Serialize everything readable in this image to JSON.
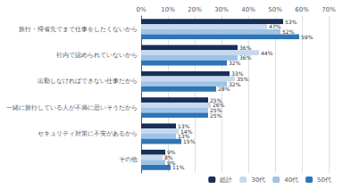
{
  "chart_data": {
    "type": "bar",
    "orientation": "horizontal",
    "categories": [
      "旅行・帰省先でまで仕事をしたくないから",
      "社内で認められていないから",
      "出勤しなければできない仕事だから",
      "一緒に旅行している人が不満に思いそうだから",
      "セキュリティ対策に不安があるから",
      "その他"
    ],
    "series": [
      {
        "name": "総計",
        "color": "#1a2e5a",
        "values": [
          53,
          36,
          33,
          25,
          13,
          9
        ],
        "value_labels": [
          "53%",
          "36%",
          "33%",
          "25%",
          "13%",
          "9%"
        ]
      },
      {
        "name": "30代",
        "color": "#c5d9ef",
        "values": [
          47,
          44,
          35,
          26,
          14,
          8
        ],
        "value_labels": [
          "47%",
          "44%",
          "35%",
          "26%",
          "14%",
          "8%"
        ]
      },
      {
        "name": "40代",
        "color": "#9dc3e6",
        "values": [
          52,
          36,
          32,
          25,
          13,
          9
        ],
        "value_labels": [
          "52%",
          "36%",
          "32%",
          "25%",
          "13%",
          "9%"
        ]
      },
      {
        "name": "50代",
        "color": "#2e75b6",
        "values": [
          59,
          32,
          28,
          25,
          15,
          11
        ],
        "value_labels": [
          "59%",
          "32%",
          "28%",
          "25%",
          "15%",
          "11%"
        ]
      }
    ],
    "xlim": [
      0,
      70
    ],
    "xticks": [
      {
        "value": 0,
        "label": "0%"
      },
      {
        "value": 10,
        "label": "10%"
      },
      {
        "value": 20,
        "label": "20%"
      },
      {
        "value": 30,
        "label": "30%"
      },
      {
        "value": 40,
        "label": "40%"
      },
      {
        "value": 50,
        "label": "50%"
      },
      {
        "value": 60,
        "label": "60%"
      },
      {
        "value": 70,
        "label": "70%"
      }
    ],
    "grid": true,
    "data_labels": true,
    "legend": "lower right"
  }
}
